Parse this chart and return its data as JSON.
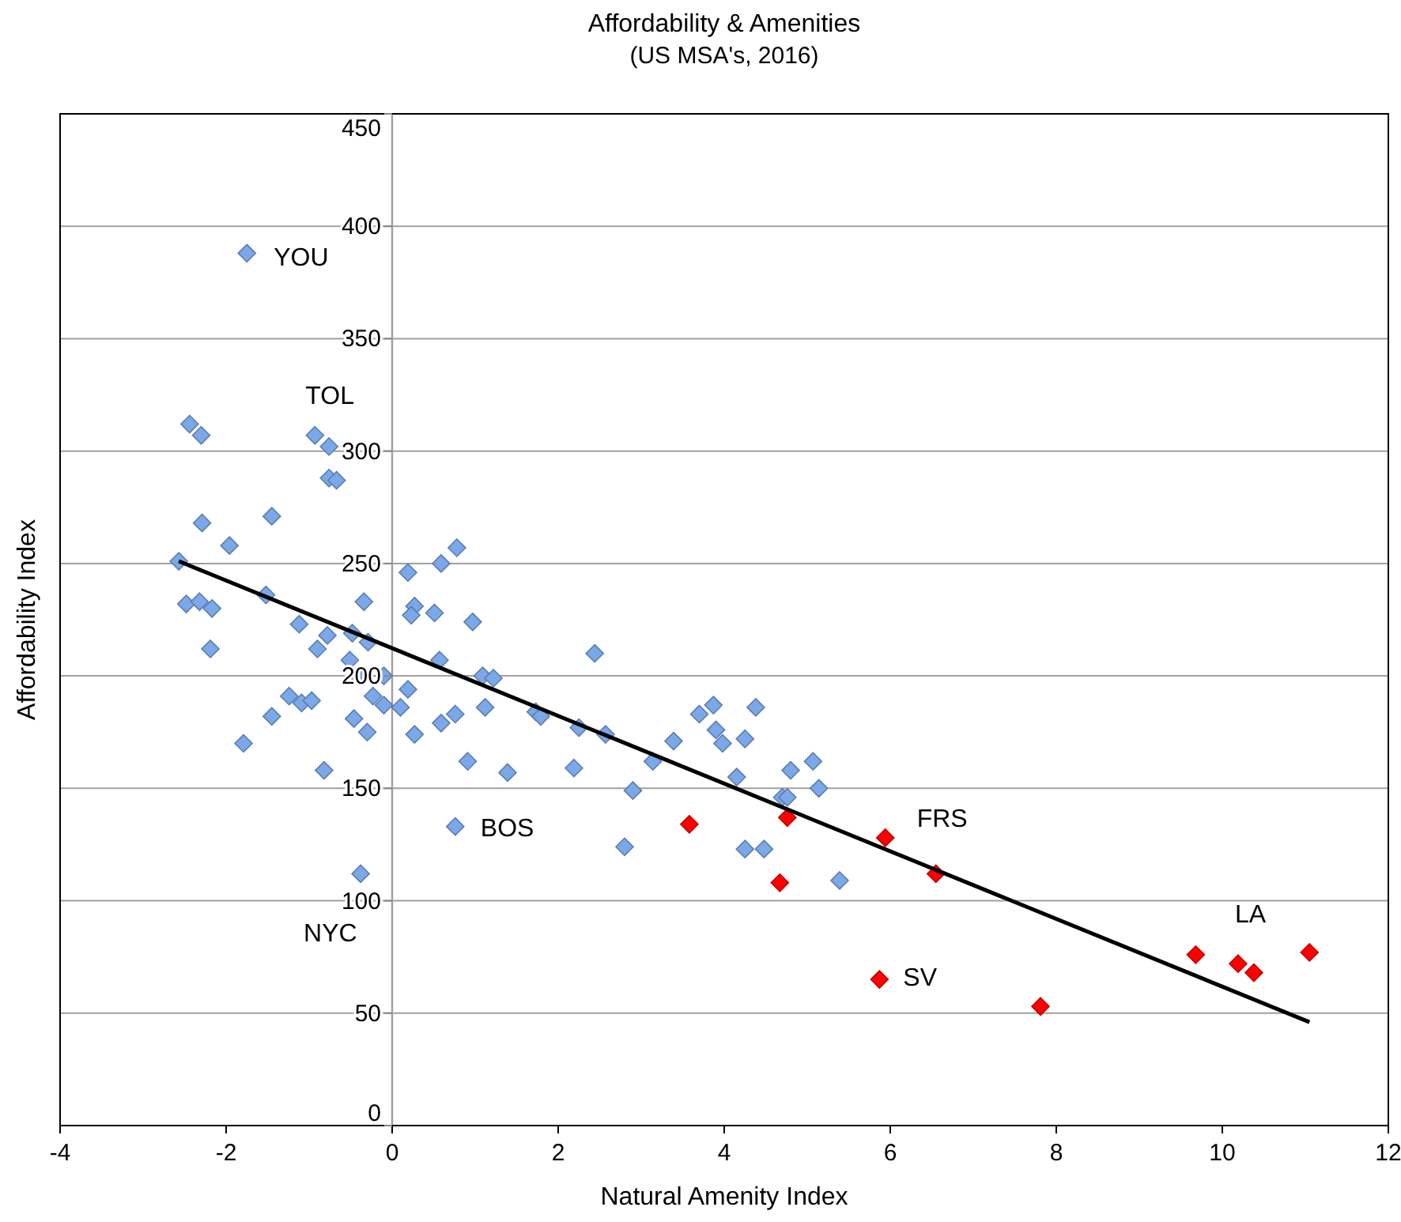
{
  "chart_data": {
    "type": "scatter",
    "title": "Affordability & Amenities",
    "subtitle": "(US MSA's, 2016)",
    "xlabel": "Natural Amenity Index",
    "ylabel": "Affordability Index",
    "xlim": [
      -4,
      12
    ],
    "xticks": [
      -4,
      -2,
      0,
      2,
      4,
      6,
      8,
      10,
      12
    ],
    "ylim": [
      0,
      450
    ],
    "yticks": [
      0,
      50,
      100,
      150,
      200,
      250,
      300,
      350,
      400,
      450
    ],
    "grid": "y",
    "marker": "diamond",
    "series": [
      {
        "color": "#7aa8e8",
        "x": [
          -1.75,
          -2.44,
          -2.3,
          -0.93,
          -0.76,
          -0.76,
          -0.67,
          -2.29,
          -1.45,
          -1.96,
          -2.57,
          -2.48,
          -2.32,
          -2.17,
          -1.52,
          -1.12,
          -2.19,
          -0.9,
          -0.78,
          -0.48,
          -0.34,
          -0.51,
          -0.29,
          -0.42,
          -0.1,
          -1.24,
          -1.09,
          -0.97,
          -1.45,
          -1.79,
          -0.82,
          -0.46,
          -0.3,
          -0.23,
          -0.1,
          0.1,
          0.19,
          -0.38,
          0.76,
          0.19,
          0.59,
          0.78,
          0.27,
          0.23,
          0.51,
          0.97,
          0.57,
          1.09,
          1.22,
          1.12,
          0.27,
          0.59,
          0.76,
          0.91,
          1.39,
          2.44,
          1.73,
          1.79,
          2.25,
          2.57,
          2.19,
          3.14,
          3.39,
          2.9,
          2.8,
          3.7,
          3.87,
          3.9,
          3.98,
          4.25,
          4.38,
          4.15,
          4.8,
          5.07,
          5.14,
          4.7,
          4.76,
          4.25,
          4.48,
          5.39
        ],
        "values": [
          388,
          312,
          307,
          307,
          302,
          288,
          287,
          268,
          271,
          258,
          251,
          232,
          233,
          230,
          236,
          223,
          212,
          212,
          218,
          219,
          233,
          207,
          215,
          200,
          200,
          191,
          188,
          189,
          182,
          170,
          158,
          181,
          175,
          191,
          187,
          186,
          194,
          112,
          133,
          246,
          250,
          257,
          231,
          227,
          228,
          224,
          207,
          200,
          199,
          186,
          174,
          179,
          183,
          162,
          157,
          210,
          184,
          182,
          177,
          174,
          159,
          162,
          171,
          149,
          124,
          183,
          187,
          176,
          170,
          172,
          186,
          155,
          158,
          162,
          150,
          146,
          146,
          123,
          123,
          109
        ]
      },
      {
        "color": "#ff0000",
        "x": [
          3.58,
          4.76,
          4.67,
          5.94,
          6.55,
          5.87,
          7.81,
          9.68,
          10.19,
          10.38,
          11.05
        ],
        "values": [
          134,
          137,
          108,
          128,
          112,
          65,
          53,
          76,
          72,
          68,
          77
        ]
      },
      {
        "type": "line",
        "marker": "none",
        "color": "#000000",
        "x": [
          -2.57,
          11.05
        ],
        "values": [
          251,
          46
        ]
      }
    ],
    "annotations": [
      {
        "text": "YOU",
        "x": -1.75,
        "y": 388
      },
      {
        "text": "TOL",
        "x": -0.93,
        "y": 307
      },
      {
        "text": "BOS",
        "x": 0.76,
        "y": 133
      },
      {
        "text": "NYC",
        "x": -0.38,
        "y": 112
      },
      {
        "text": "FRS",
        "x": 5.94,
        "y": 128
      },
      {
        "text": "SV",
        "x": 5.87,
        "y": 65
      },
      {
        "text": "LA",
        "x": 10.19,
        "y": 72
      }
    ]
  }
}
